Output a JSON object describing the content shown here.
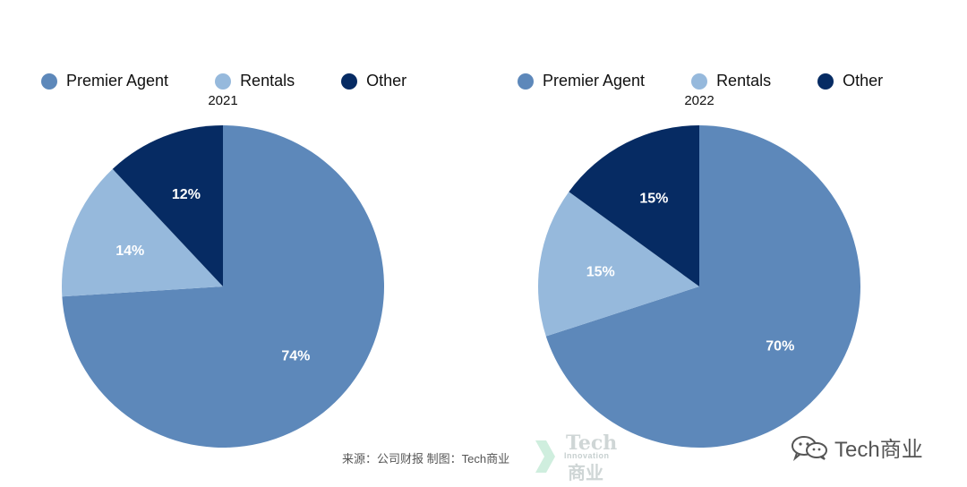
{
  "colors": {
    "premier_agent": "#5d88ba",
    "rentals": "#96b9dc",
    "other": "#062b63"
  },
  "chart_data": [
    {
      "type": "pie",
      "title": "2021",
      "legend": [
        "Premier Agent",
        "Rentals",
        "Other"
      ],
      "slices": [
        {
          "label": "Premier Agent",
          "value": 74,
          "text": "74%"
        },
        {
          "label": "Rentals",
          "value": 14,
          "text": "14%"
        },
        {
          "label": "Other",
          "value": 12,
          "text": "12%"
        }
      ]
    },
    {
      "type": "pie",
      "title": "2022",
      "legend": [
        "Premier Agent",
        "Rentals",
        "Other"
      ],
      "slices": [
        {
          "label": "Premier Agent",
          "value": 70,
          "text": "70%"
        },
        {
          "label": "Rentals",
          "value": 15,
          "text": "15%"
        },
        {
          "label": "Other",
          "value": 15,
          "text": "15%"
        }
      ]
    }
  ],
  "footer": {
    "source": "来源：公司财报 制图：Tech商业",
    "watermark_tech": "Tech",
    "watermark_innovation": "Innovation",
    "watermark_cn": "商业",
    "wechat_name": "Tech商业"
  }
}
